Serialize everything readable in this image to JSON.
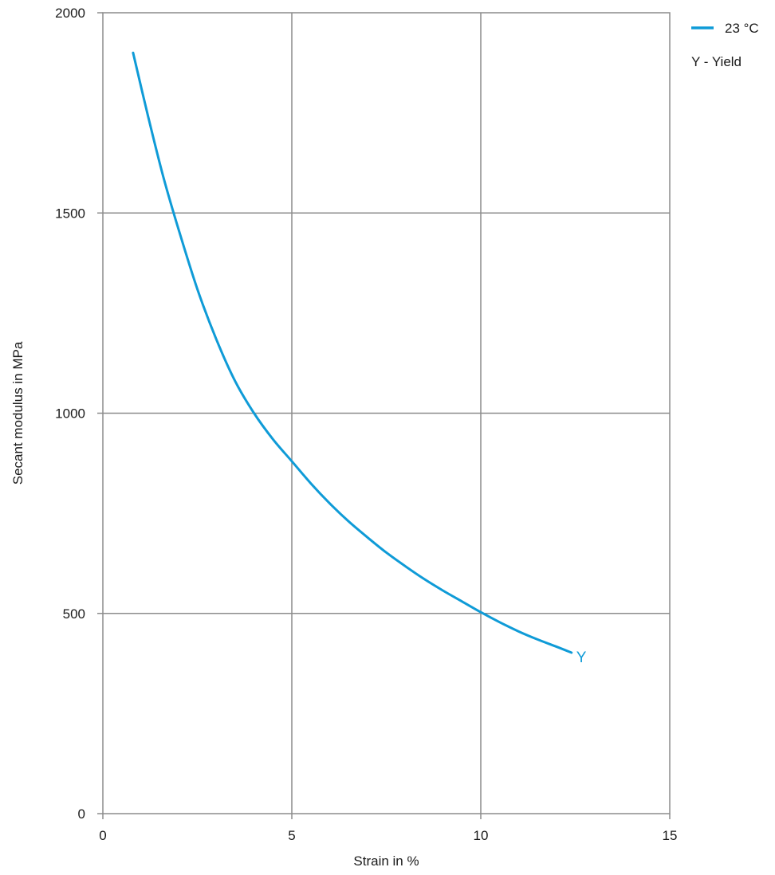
{
  "chart_data": {
    "type": "line",
    "title": "",
    "xlabel": "Strain in  %",
    "ylabel": "Secant modulus in  MPa",
    "xlim": [
      0,
      15
    ],
    "ylim": [
      0,
      2000
    ],
    "xticks": [
      0,
      5,
      10,
      15
    ],
    "yticks": [
      0,
      500,
      1000,
      1500,
      2000
    ],
    "grid": true,
    "legend_position": "top-right",
    "legend": {
      "series_label": "23 °C",
      "note": "Y - Yield"
    },
    "series": [
      {
        "name": "23 °C",
        "color": "#0f9bd7",
        "x": [
          0.8,
          1.2,
          1.6,
          2.0,
          2.5,
          3.0,
          3.5,
          4.0,
          4.5,
          5.0,
          5.5,
          6.0,
          6.5,
          7.0,
          7.5,
          8.0,
          8.5,
          9.0,
          9.5,
          10.0,
          10.5,
          11.0,
          11.5,
          12.0,
          12.4
        ],
        "y": [
          1900,
          1740,
          1590,
          1460,
          1310,
          1185,
          1080,
          1000,
          935,
          880,
          825,
          775,
          730,
          690,
          652,
          618,
          586,
          557,
          530,
          503,
          478,
          455,
          435,
          417,
          402
        ]
      }
    ],
    "annotations": [
      {
        "text": "Y",
        "x": 12.4,
        "y": 402,
        "color": "#0f9bd7"
      }
    ]
  }
}
